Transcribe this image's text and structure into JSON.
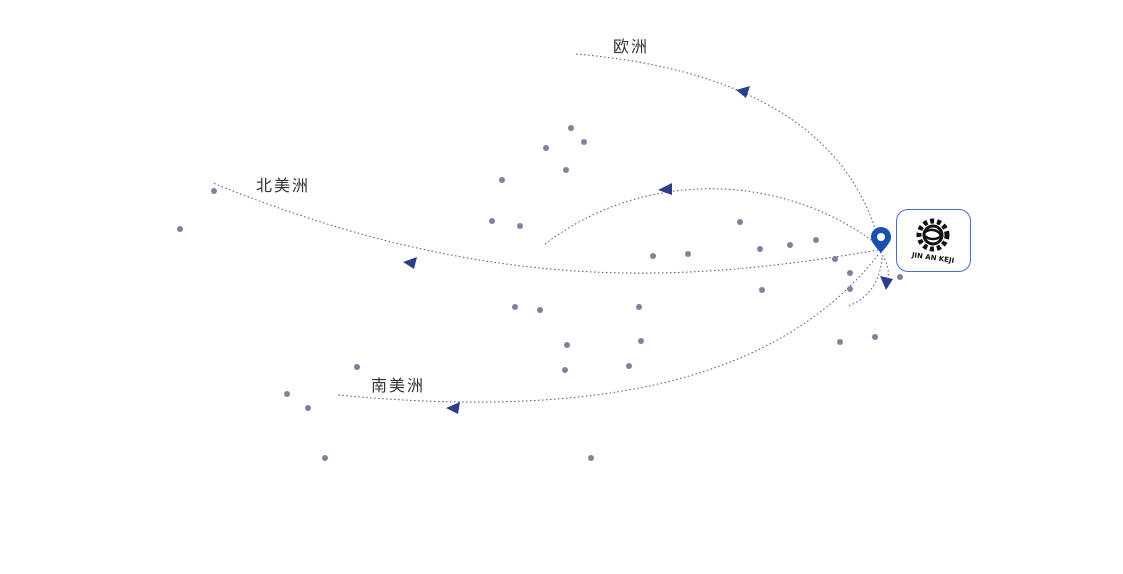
{
  "labels": {
    "europe": "欧洲",
    "north_america": "北美洲",
    "south_america": "南美洲"
  },
  "logo": {
    "text": "JIN AN KEJI",
    "icon": "company-logo-gear-icon"
  },
  "marker": {
    "icon": "location-pin-icon",
    "color": "#1a4fb0"
  },
  "colors": {
    "route": "#4b4f9a",
    "arrow": "#2c3f8a",
    "dot": "#7a849b",
    "logo_border": "#4a6fc9"
  }
}
